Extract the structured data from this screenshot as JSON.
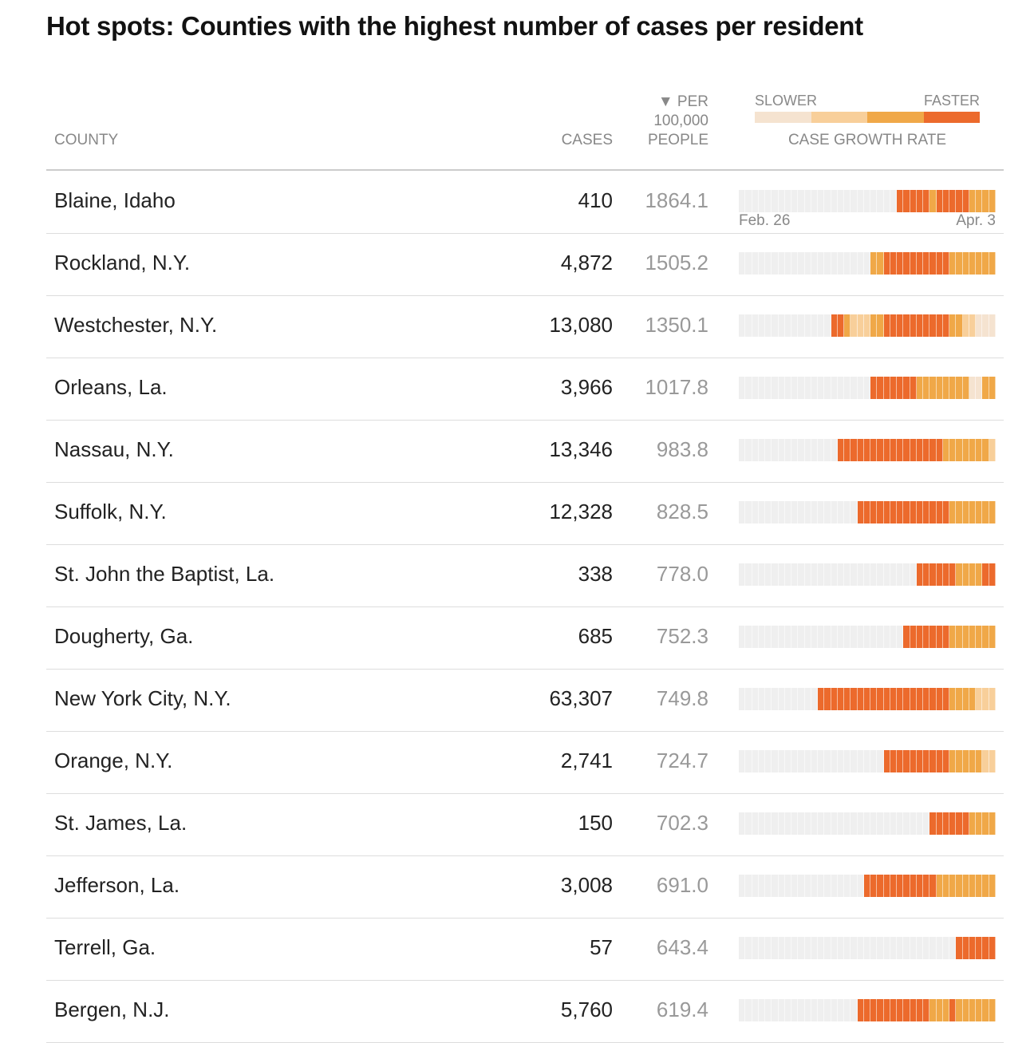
{
  "title": "Hot spots: Counties with the highest number of cases per resident",
  "headers": {
    "county": "COUNTY",
    "cases": "CASES",
    "per_line1": "▼ PER",
    "per_line2": "100,000",
    "per_line3": "PEOPLE",
    "legend_slower": "SLOWER",
    "legend_faster": "FASTER",
    "legend_caption": "CASE GROWTH RATE"
  },
  "growth_colors": [
    "#efefef",
    "#f5e3d0",
    "#f8cf9a",
    "#f0a848",
    "#ec6a2c"
  ],
  "axis": {
    "start": "Feb. 26",
    "end": "Apr. 3"
  },
  "chart_data": {
    "type": "table",
    "title": "Hot spots: Counties with the highest number of cases per resident",
    "columns": [
      "COUNTY",
      "CASES",
      "PER 100,000 PEOPLE",
      "CASE GROWTH RATE"
    ],
    "growth_scale": [
      "none",
      "slower",
      "slow",
      "fast",
      "faster"
    ],
    "growth_range": [
      "Feb. 26",
      "Apr. 3"
    ],
    "rows": [
      {
        "county": "Blaine, Idaho",
        "cases": "410",
        "per": "1864.1",
        "growth": "000000000000000000000000444443444443333"
      },
      {
        "county": "Rockland, N.Y.",
        "cases": "4,872",
        "per": "1505.2",
        "growth": "000000000000000000003344444444443333333"
      },
      {
        "county": "Westchester, N.Y.",
        "cases": "13,080",
        "per": "1350.1",
        "growth": "000000000000004432223344444444443322111"
      },
      {
        "county": "Orleans, La.",
        "cases": "3,966",
        "per": "1017.8",
        "growth": "000000000000000000004444444333333331133"
      },
      {
        "county": "Nassau, N.Y.",
        "cases": "13,346",
        "per": "983.8",
        "growth": "000000000000000444444444444444433333332"
      },
      {
        "county": "Suffolk, N.Y.",
        "cases": "12,328",
        "per": "828.5",
        "growth": "000000000000000000444444444444443333333"
      },
      {
        "county": "St. John the Baptist, La.",
        "cases": "338",
        "per": "778.0",
        "growth": "000000000000000000000000000444444333344"
      },
      {
        "county": "Dougherty, Ga.",
        "cases": "685",
        "per": "752.3",
        "growth": "000000000000000000000000044444443333333"
      },
      {
        "county": "New York City, N.Y.",
        "cases": "63,307",
        "per": "749.8",
        "growth": "000000000000444444444444444444443333222"
      },
      {
        "county": "Orange, N.Y.",
        "cases": "2,741",
        "per": "724.7",
        "growth": "000000000000000000000044444444443333322"
      },
      {
        "county": "St. James, La.",
        "cases": "150",
        "per": "702.3",
        "growth": "000000000000000000000000000004444443333"
      },
      {
        "county": "Jefferson, La.",
        "cases": "3,008",
        "per": "691.0",
        "growth": "000000000000000000044444444444333333333"
      },
      {
        "county": "Terrell, Ga.",
        "cases": "57",
        "per": "643.4",
        "growth": "000000000000000000000000000000000444444"
      },
      {
        "county": "Bergen, N.J.",
        "cases": "5,760",
        "per": "619.4",
        "growth": "000000000000000000444444444443334333333"
      }
    ]
  }
}
